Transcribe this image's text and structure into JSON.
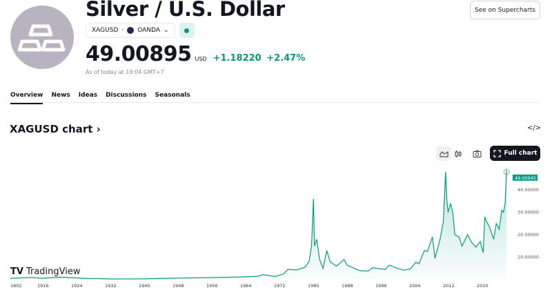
{
  "header": {
    "title": "Silver / U.S. Dollar",
    "symbol": "XAGUSD",
    "separator": "·",
    "exchange": "OANDA",
    "price": "49.00895",
    "currency": "USD",
    "change": "+1.18220",
    "change_pct": "+2.47%",
    "as_of": "As of today at 19:04 GMT+7",
    "market_status_color": "#089981",
    "supercharts_label": "See on Supercharts"
  },
  "tabs": [
    {
      "label": "Overview",
      "active": true
    },
    {
      "label": "News"
    },
    {
      "label": "Ideas"
    },
    {
      "label": "Discussions"
    },
    {
      "label": "Seasonals"
    }
  ],
  "chart_section": {
    "title": "XAGUSD chart",
    "arrow": "›",
    "embed_icon": "</>",
    "full_chart_label": "Full chart",
    "watermark": "TradingView"
  },
  "chart_data": {
    "type": "area",
    "line_color": "#089981",
    "last_value_label": "49.00945",
    "y_ticks": [
      "10.00000",
      "20.00000",
      "30.00000",
      "40.00000"
    ],
    "y_tick_values": [
      10,
      20,
      30,
      40
    ],
    "x_ticks": [
      "1802",
      "1916",
      "1924",
      "1932",
      "1940",
      "1948",
      "1956",
      "1964",
      "1972",
      "1980",
      "1988",
      "1996",
      "2004",
      "2012",
      "2020"
    ],
    "points": [
      [
        1800,
        0.6
      ],
      [
        1880,
        1.0
      ],
      [
        1912,
        0.6
      ],
      [
        1920,
        1.1
      ],
      [
        1926,
        0.6
      ],
      [
        1932,
        0.3
      ],
      [
        1940,
        0.35
      ],
      [
        1948,
        0.7
      ],
      [
        1955,
        0.9
      ],
      [
        1963,
        1.2
      ],
      [
        1967,
        1.5
      ],
      [
        1968,
        2.2
      ],
      [
        1971,
        1.4
      ],
      [
        1973,
        2.6
      ],
      [
        1974,
        4.6
      ],
      [
        1976,
        4.3
      ],
      [
        1978,
        5.5
      ],
      [
        1979,
        8
      ],
      [
        1979.6,
        15
      ],
      [
        1980.05,
        36
      ],
      [
        1980.3,
        15
      ],
      [
        1980.8,
        18
      ],
      [
        1981.5,
        9
      ],
      [
        1982.3,
        5
      ],
      [
        1983.2,
        13
      ],
      [
        1984,
        8
      ],
      [
        1985.5,
        6
      ],
      [
        1987.3,
        9
      ],
      [
        1988,
        6.5
      ],
      [
        1991,
        4
      ],
      [
        1993,
        3.8
      ],
      [
        1994,
        5.3
      ],
      [
        1997,
        4.5
      ],
      [
        1998,
        6.5
      ],
      [
        2000,
        5
      ],
      [
        2001.5,
        4.2
      ],
      [
        2003,
        4.8
      ],
      [
        2004.3,
        7.8
      ],
      [
        2005,
        7
      ],
      [
        2006.3,
        13
      ],
      [
        2007,
        12.5
      ],
      [
        2008.2,
        19
      ],
      [
        2008.8,
        9.5
      ],
      [
        2010,
        18
      ],
      [
        2010.8,
        26
      ],
      [
        2011.3,
        48
      ],
      [
        2011.6,
        36
      ],
      [
        2011.9,
        30
      ],
      [
        2012.5,
        34
      ],
      [
        2013,
        30
      ],
      [
        2013.5,
        20
      ],
      [
        2014.5,
        19
      ],
      [
        2015.2,
        15
      ],
      [
        2016.5,
        20
      ],
      [
        2017.5,
        16.5
      ],
      [
        2018.5,
        14.5
      ],
      [
        2019.5,
        17
      ],
      [
        2020.2,
        12
      ],
      [
        2020.6,
        28
      ],
      [
        2021,
        26
      ],
      [
        2021.8,
        23
      ],
      [
        2022.7,
        18
      ],
      [
        2023.3,
        25
      ],
      [
        2024,
        22.5
      ],
      [
        2024.6,
        31
      ],
      [
        2025,
        30
      ],
      [
        2025.4,
        34
      ],
      [
        2025.75,
        49
      ]
    ]
  }
}
